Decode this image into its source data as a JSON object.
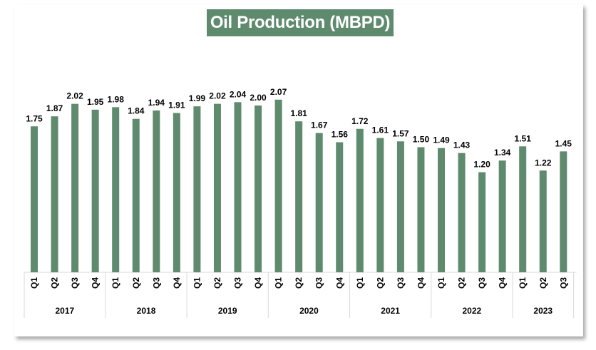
{
  "chart_data": {
    "type": "bar",
    "title": "Oil Production (MBPD)",
    "xlabel": "",
    "ylabel": "",
    "ylim": [
      0,
      2.1
    ],
    "grid": false,
    "bar_color": "#5e8a6e",
    "groups": [
      {
        "year": "2017",
        "quarters": [
          "Q1",
          "Q2",
          "Q3",
          "Q4"
        ],
        "values": [
          1.75,
          1.87,
          2.02,
          1.95
        ]
      },
      {
        "year": "2018",
        "quarters": [
          "Q1",
          "Q2",
          "Q3",
          "Q4"
        ],
        "values": [
          1.98,
          1.84,
          1.94,
          1.91
        ]
      },
      {
        "year": "2019",
        "quarters": [
          "Q1",
          "Q2",
          "Q3",
          "Q4"
        ],
        "values": [
          1.99,
          2.02,
          2.04,
          2.0
        ]
      },
      {
        "year": "2020",
        "quarters": [
          "Q1",
          "Q2",
          "Q3",
          "Q4"
        ],
        "values": [
          2.07,
          1.81,
          1.67,
          1.56
        ]
      },
      {
        "year": "2021",
        "quarters": [
          "Q1",
          "Q2",
          "Q3",
          "Q4"
        ],
        "values": [
          1.72,
          1.61,
          1.57,
          1.5
        ]
      },
      {
        "year": "2022",
        "quarters": [
          "Q1",
          "Q2",
          "Q3",
          "Q4"
        ],
        "values": [
          1.49,
          1.43,
          1.2,
          1.34
        ]
      },
      {
        "year": "2023",
        "quarters": [
          "Q1",
          "Q2",
          "Q3"
        ],
        "values": [
          1.51,
          1.22,
          1.45
        ]
      }
    ]
  }
}
